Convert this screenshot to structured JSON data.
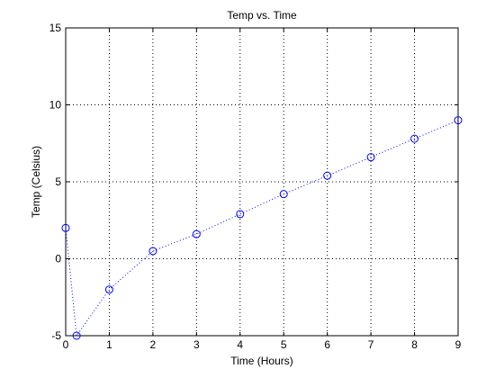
{
  "chart_data": {
    "type": "line",
    "title": "Temp vs. Time",
    "xlabel": "Time (Hours)",
    "ylabel": "Temp (Celsius)",
    "xlim": [
      0,
      9
    ],
    "ylim": [
      -5,
      15
    ],
    "xticks": [
      0,
      1,
      2,
      3,
      4,
      5,
      6,
      7,
      8,
      9
    ],
    "yticks": [
      -5,
      0,
      5,
      10,
      15
    ],
    "grid": true,
    "series": [
      {
        "x": [
          0,
          0.25,
          1,
          2,
          3,
          4,
          5,
          6,
          7,
          8,
          9
        ],
        "y": [
          2,
          -5,
          -2,
          0.5,
          1.6,
          2.9,
          4.2,
          5.4,
          6.6,
          7.8,
          9
        ],
        "line_style": "dotted",
        "marker": "circle",
        "color": "#0000ff"
      }
    ]
  }
}
